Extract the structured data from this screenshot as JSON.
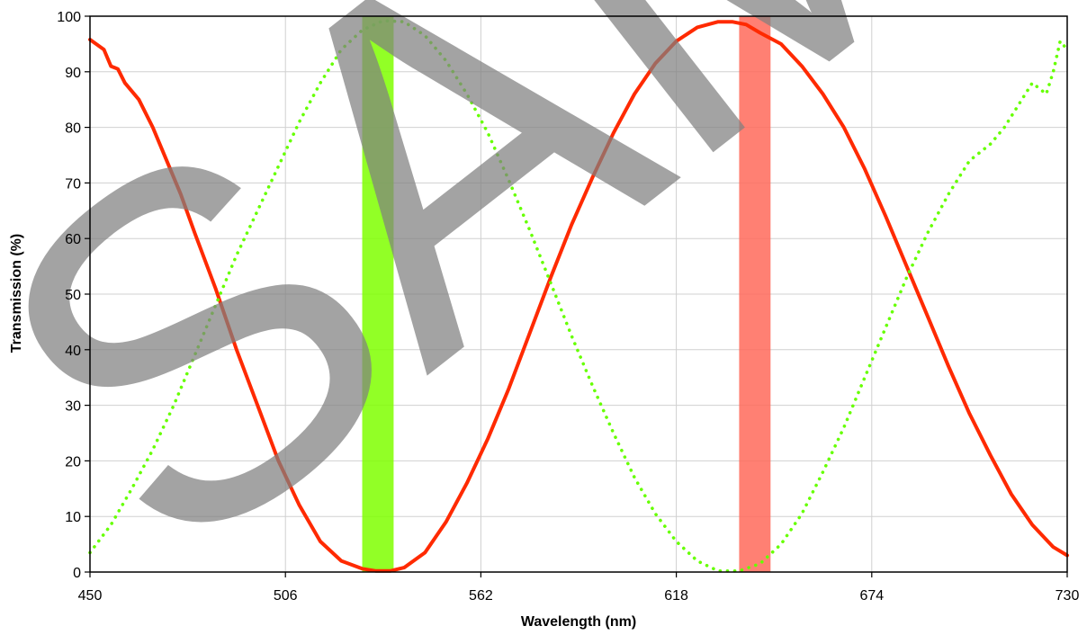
{
  "chart_data": {
    "type": "line",
    "xlabel": "Wavelength (nm)",
    "ylabel": "Transmission (%)",
    "xlim": [
      450,
      730
    ],
    "ylim": [
      0,
      100
    ],
    "x_ticks": [
      450,
      506,
      562,
      618,
      674,
      730
    ],
    "y_ticks": [
      0,
      10,
      20,
      30,
      40,
      50,
      60,
      70,
      80,
      90,
      100
    ],
    "grid": true,
    "legend": "none",
    "bands": [
      {
        "x_start": 528,
        "x_end": 537,
        "color": "#7fff00"
      },
      {
        "x_start": 636,
        "x_end": 645,
        "color": "#ff6a5a"
      }
    ],
    "series": [
      {
        "style": "solid",
        "color": "#ff2a00",
        "x": [
          450,
          454,
          456,
          458,
          460,
          464,
          468,
          472,
          476,
          480,
          486,
          492,
          498,
          504,
          510,
          516,
          522,
          528,
          532,
          536,
          540,
          546,
          552,
          558,
          564,
          570,
          576,
          582,
          588,
          594,
          600,
          606,
          612,
          618,
          624,
          630,
          634,
          638,
          642,
          648,
          654,
          660,
          666,
          672,
          678,
          684,
          690,
          696,
          702,
          708,
          714,
          720,
          726,
          730
        ],
        "y": [
          95.8,
          94,
          91,
          90.5,
          88,
          85,
          80,
          74,
          68,
          61,
          51,
          40,
          30,
          20,
          12,
          5.5,
          2,
          0.6,
          0.2,
          0.2,
          0.8,
          3.5,
          9,
          16,
          24,
          33,
          43,
          53,
          62.5,
          71,
          79,
          86,
          91.5,
          95.5,
          98,
          99,
          99,
          98.5,
          97,
          95,
          91,
          86,
          80,
          72.5,
          64,
          55,
          46,
          37,
          28.5,
          21,
          14,
          8.5,
          4.5,
          3
        ]
      },
      {
        "style": "dotted",
        "color": "#66ff00",
        "x": [
          450,
          456,
          462,
          468,
          474,
          480,
          486,
          492,
          498,
          504,
          510,
          516,
          522,
          528,
          534,
          540,
          546,
          552,
          558,
          564,
          570,
          576,
          582,
          588,
          594,
          600,
          606,
          612,
          618,
          624,
          630,
          636,
          642,
          648,
          654,
          660,
          666,
          672,
          678,
          684,
          690,
          696,
          702,
          708,
          712,
          716,
          720,
          724,
          726,
          728,
          730
        ],
        "y": [
          3.5,
          8.5,
          15,
          22,
          30,
          39,
          48,
          57,
          65,
          73,
          81,
          88,
          94,
          97.5,
          99.2,
          99,
          96.5,
          92,
          86,
          79,
          70.5,
          61.5,
          52,
          42.5,
          33.5,
          25,
          17,
          10.5,
          5.5,
          2,
          0.2,
          0.2,
          1.5,
          5,
          10.5,
          18,
          26,
          35,
          44,
          53,
          61,
          68,
          74,
          77,
          80,
          84,
          88,
          86,
          90,
          95.5,
          94
        ]
      }
    ],
    "watermark": "SAMPLE"
  }
}
